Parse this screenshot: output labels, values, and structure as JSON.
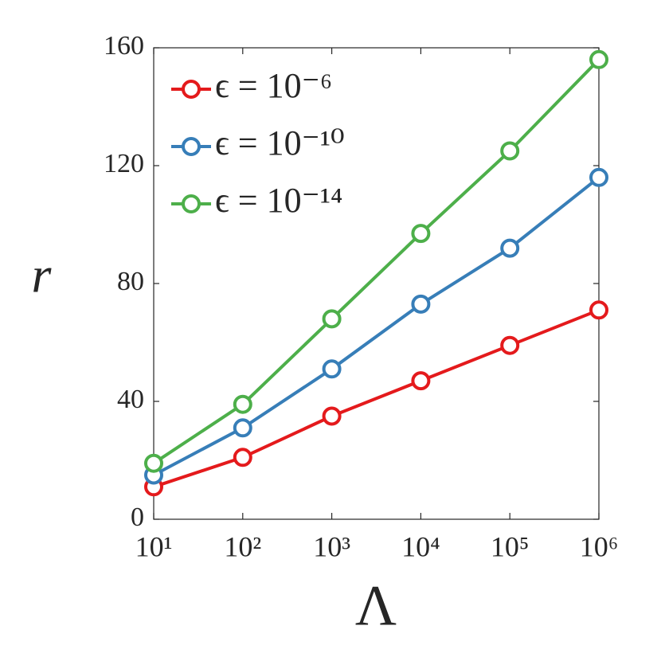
{
  "chart_data": {
    "type": "line",
    "x_label": "Λ",
    "y_label": "r",
    "x": [
      10,
      100,
      1000,
      10000,
      100000,
      1000000
    ],
    "xscale": "log",
    "xlim": [
      10,
      1000000
    ],
    "xticks": [
      {
        "value": 10,
        "label": "10¹"
      },
      {
        "value": 100,
        "label": "10²"
      },
      {
        "value": 1000,
        "label": "10³"
      },
      {
        "value": 10000,
        "label": "10⁴"
      },
      {
        "value": 100000,
        "label": "10⁵"
      },
      {
        "value": 1000000,
        "label": "10⁶"
      }
    ],
    "ylim": [
      0,
      160
    ],
    "yticks": [
      0,
      40,
      80,
      120,
      160
    ],
    "legend": "upper left",
    "series": [
      {
        "name": "ϵ = 10⁻⁶",
        "color": "#e41a1c",
        "values": [
          11,
          21,
          35,
          47,
          59,
          71
        ]
      },
      {
        "name": "ϵ = 10⁻¹⁰",
        "color": "#377eb8",
        "values": [
          15,
          31,
          51,
          73,
          92,
          116
        ]
      },
      {
        "name": "ϵ = 10⁻¹⁴",
        "color": "#4daf4a",
        "values": [
          19,
          39,
          68,
          97,
          125,
          156
        ]
      }
    ]
  }
}
